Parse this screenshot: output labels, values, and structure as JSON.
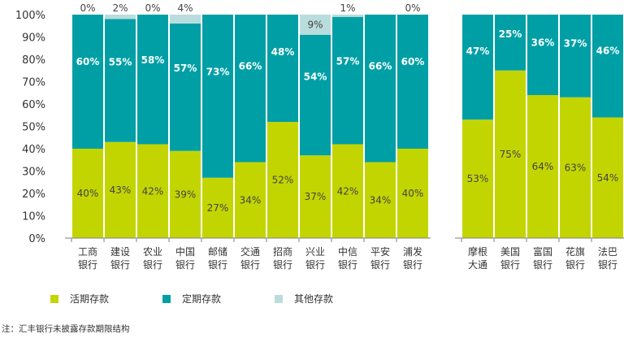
{
  "chart_data": {
    "type": "bar",
    "stacked": true,
    "percent": true,
    "ylim": [
      0,
      100
    ],
    "yticks": [
      "0%",
      "10%",
      "20%",
      "30%",
      "40%",
      "50%",
      "60%",
      "70%",
      "80%",
      "90%",
      "100%"
    ],
    "grid": false,
    "legend_placement": "bottom-left",
    "categories": [
      [
        "工商",
        "银行"
      ],
      [
        "建设",
        "银行"
      ],
      [
        "农业",
        "银行"
      ],
      [
        "中国",
        "银行"
      ],
      [
        "邮储",
        "银行"
      ],
      [
        "交通",
        "银行"
      ],
      [
        "招商",
        "银行"
      ],
      [
        "兴业",
        "银行"
      ],
      [
        "中信",
        "银行"
      ],
      [
        "平安",
        "银行"
      ],
      [
        "浦发",
        "银行"
      ],
      [
        "摩根",
        "大通"
      ],
      [
        "美国",
        "银行"
      ],
      [
        "富国",
        "银行"
      ],
      [
        "花旗",
        "银行"
      ],
      [
        "法巴",
        "银行"
      ]
    ],
    "groups": [
      {
        "indices": [
          0,
          1,
          2,
          3,
          4,
          5,
          6,
          7,
          8,
          9,
          10
        ]
      },
      {
        "indices": [
          11,
          12,
          13,
          14,
          15
        ]
      }
    ],
    "series": [
      {
        "name": "活期存款",
        "color": "#c3d500",
        "values": [
          40,
          43,
          42,
          39,
          27,
          34,
          52,
          37,
          42,
          34,
          40,
          53,
          75,
          64,
          63,
          54
        ],
        "labels": [
          "40%",
          "43%",
          "42%",
          "39%",
          "27%",
          "34%",
          "52%",
          "37%",
          "42%",
          "34%",
          "40%",
          "53%",
          "75%",
          "64%",
          "63%",
          "54%"
        ],
        "label_color": "#444444"
      },
      {
        "name": "定期存款",
        "color": "#009fa6",
        "values": [
          60,
          55,
          58,
          57,
          73,
          66,
          48,
          54,
          57,
          66,
          60,
          47,
          25,
          36,
          37,
          46
        ],
        "labels": [
          "60%",
          "55%",
          "58%",
          "57%",
          "73%",
          "66%",
          "48%",
          "54%",
          "57%",
          "66%",
          "60%",
          "47%",
          "25%",
          "36%",
          "37%",
          "46%"
        ],
        "label_color": "#ffffff"
      },
      {
        "name": "其他存款",
        "color": "#b9dcdc",
        "values": [
          0,
          2,
          0,
          4,
          0,
          0,
          0,
          9,
          1,
          0,
          0,
          0,
          0,
          0,
          0,
          0
        ],
        "labels": [
          "0%",
          "2%",
          "0%",
          "4%",
          null,
          null,
          null,
          "9%",
          "1%",
          null,
          "0%",
          null,
          null,
          null,
          null,
          null
        ],
        "label_color": "#444444"
      }
    ],
    "footnote": "注：汇丰银行未披露存款期限结构"
  }
}
